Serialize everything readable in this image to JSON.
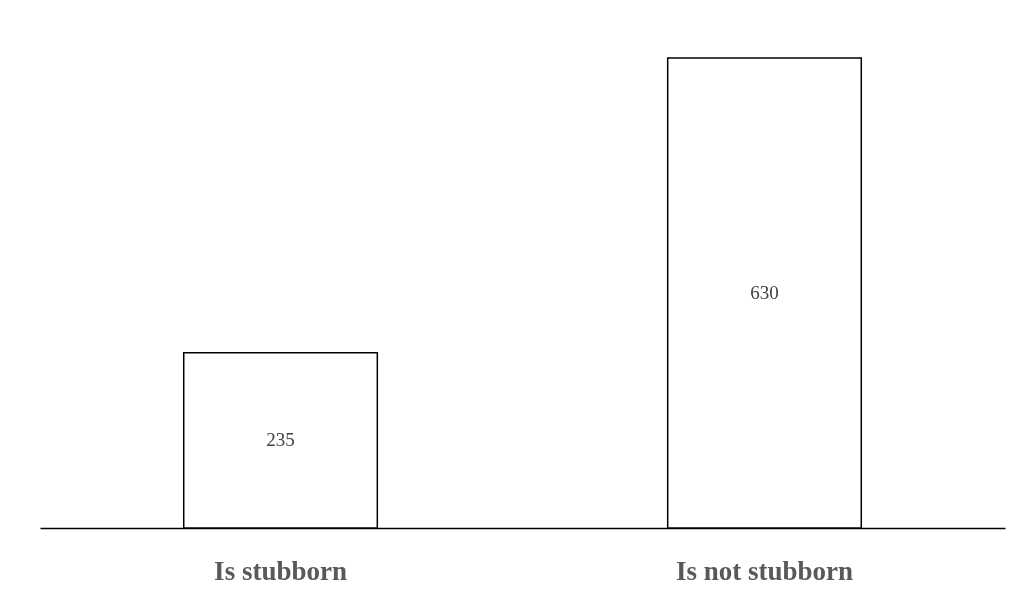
{
  "chart_data": {
    "type": "bar",
    "categories": [
      "Is stubborn",
      "Is not stubborn"
    ],
    "values": [
      235,
      630
    ],
    "color": "#ffffff",
    "data_labels": true
  }
}
